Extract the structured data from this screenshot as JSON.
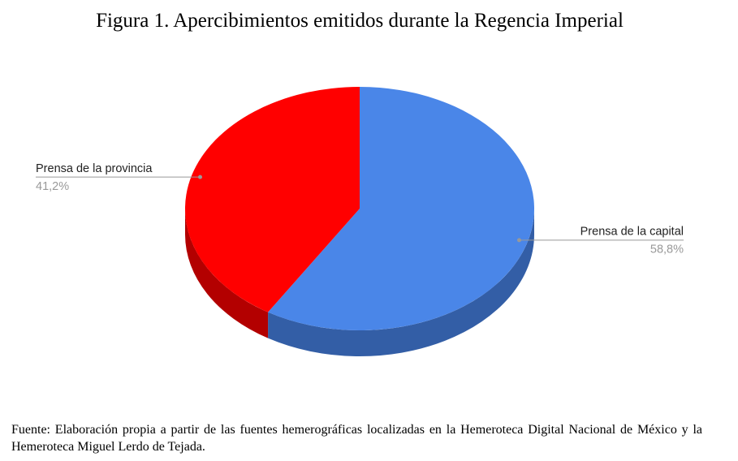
{
  "chart_data": {
    "type": "pie",
    "title": "Figura 1. Apercibimientos emitidos durante la Regencia Imperial",
    "categories": [
      "Prensa de la capital",
      "Prensa de la provincia"
    ],
    "values": [
      58.8,
      41.2
    ],
    "value_labels": [
      "58,8%",
      "41,2%"
    ],
    "colors": [
      "#4a86e8",
      "#ff0000"
    ],
    "side_colors": [
      "#335ea6",
      "#b30000"
    ],
    "source": "Fuente: Elaboración propia a partir de las fuentes hemerográficas localizadas en la Hemeroteca Digital Nacional de México y la Hemeroteca Miguel Lerdo de Tejada."
  }
}
